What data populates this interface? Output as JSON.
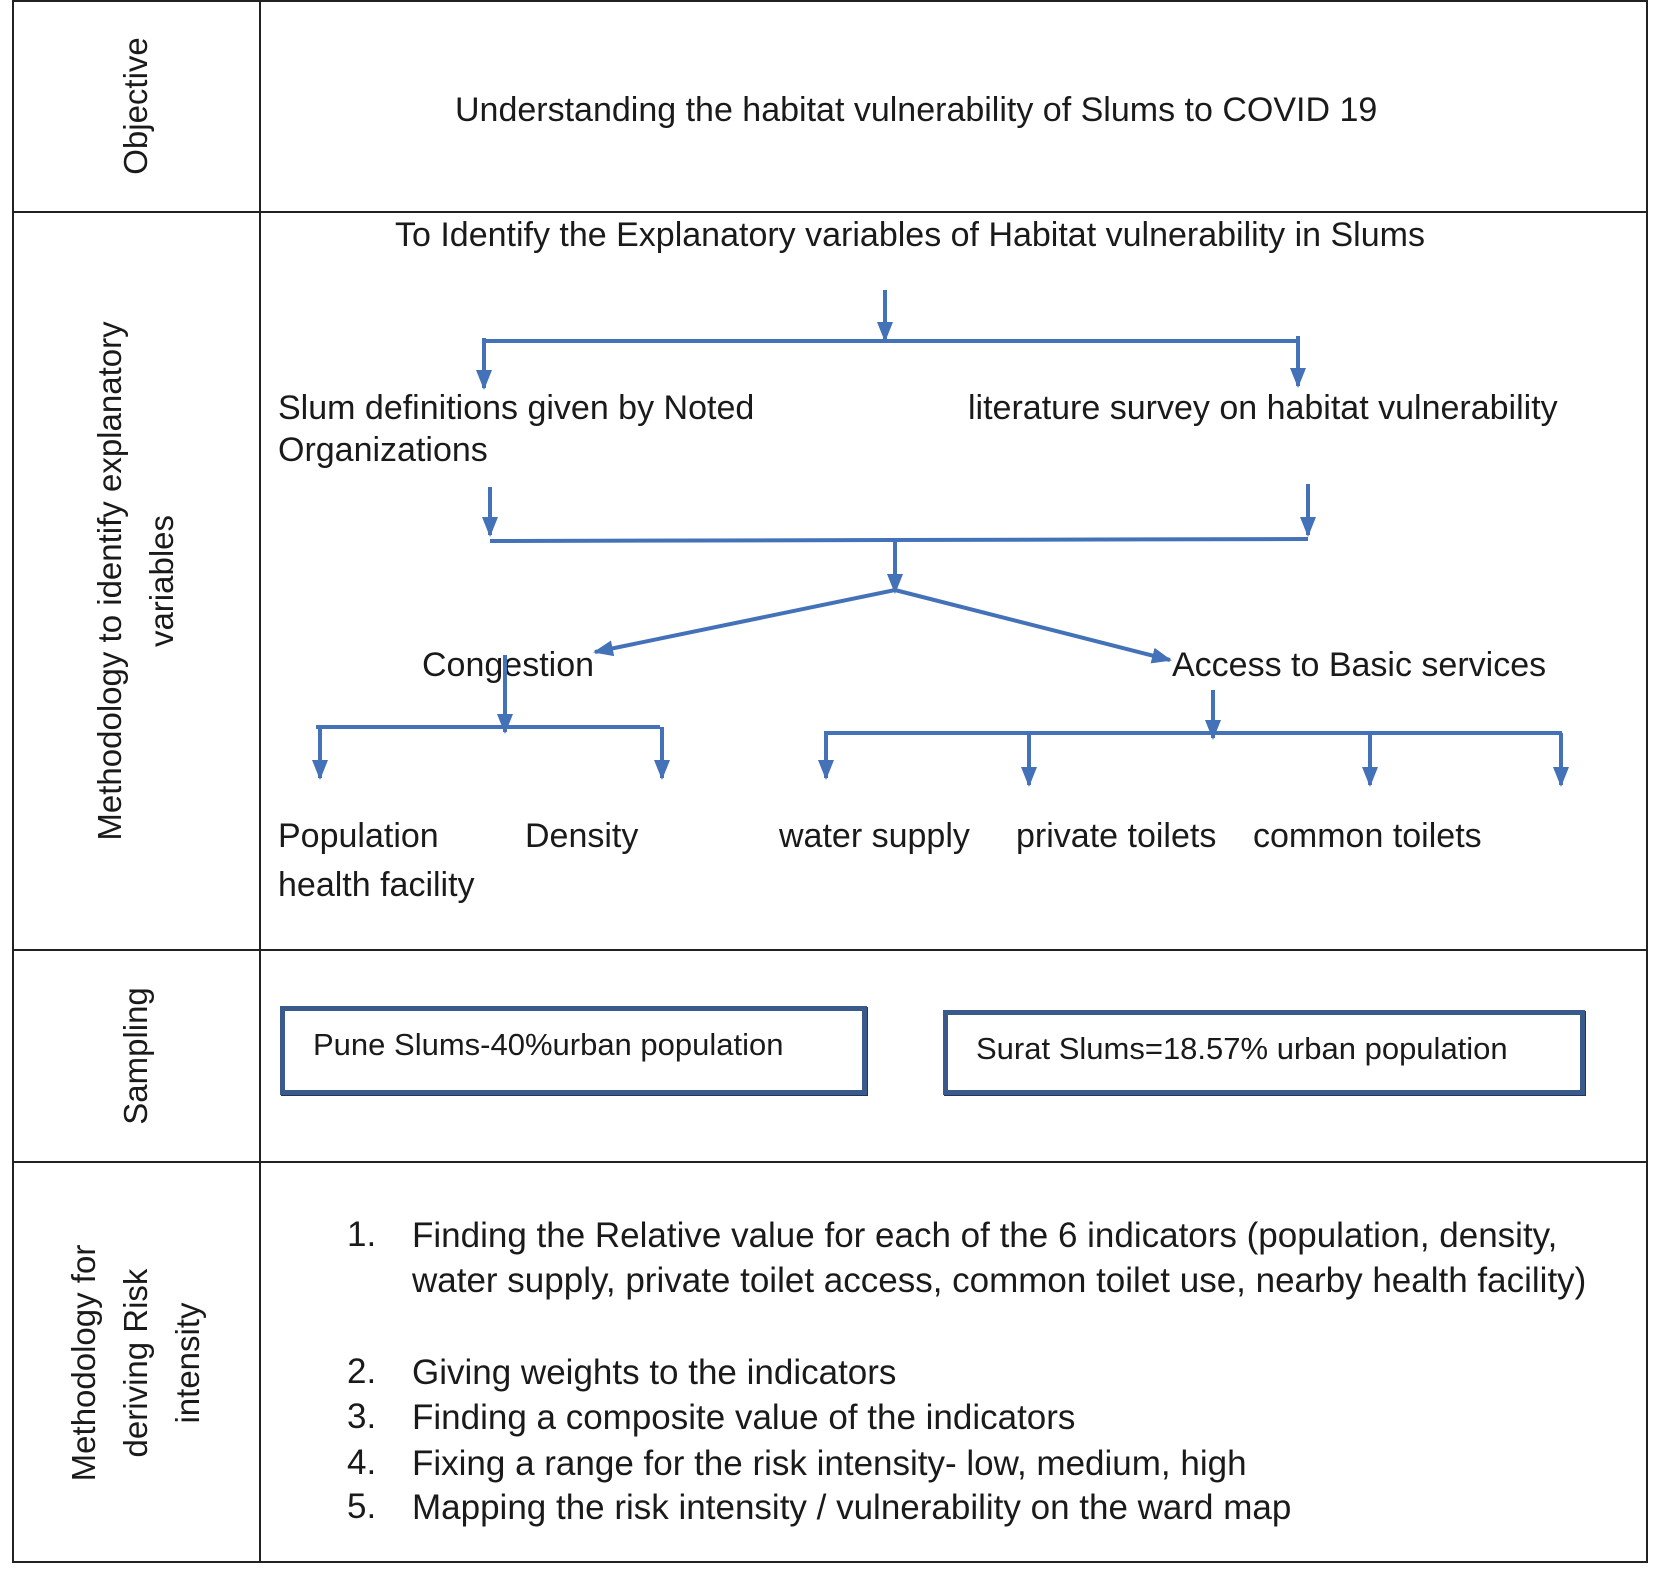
{
  "rows": {
    "objective": {
      "label": "Objective",
      "text": "Understanding the habitat vulnerability of Slums to COVID 19"
    },
    "methodology_variables": {
      "label_line1": "Methodology to identify explanatory",
      "label_line2": "variables",
      "title": "To Identify the Explanatory variables of Habitat vulnerability in Slums",
      "source_left_line1": "Slum definitions given by Noted",
      "source_left_line2": "Organizations",
      "source_right": "literature survey on habitat vulnerability",
      "category_left": "Congestion",
      "category_right": "Access to Basic services",
      "leaf_population": "Population",
      "leaf_density": "Density",
      "leaf_health": "health facility",
      "leaf_water": "water supply",
      "leaf_private": "private toilets",
      "leaf_common": "common toilets"
    },
    "sampling": {
      "label": "Sampling",
      "box_left": "Pune Slums-40%urban population",
      "box_right": "Surat Slums=18.57% urban population"
    },
    "risk": {
      "label_line1": "Methodology for",
      "label_line2": "deriving Risk",
      "label_line3": "intensity",
      "steps": [
        {
          "num": "1.",
          "text": "Finding the Relative value for each of the 6 indicators (population, density, water supply, private toilet access, common toilet use, nearby health facility)"
        },
        {
          "num": "2.",
          "text": "Giving weights to the indicators"
        },
        {
          "num": "3.",
          "text": "Finding a composite value of the indicators"
        },
        {
          "num": "4.",
          "text": "Fixing a range for the risk intensity- low, medium, high"
        },
        {
          "num": "5.",
          "text": "Mapping the risk intensity / vulnerability on the ward map"
        }
      ]
    }
  },
  "colors": {
    "arrow": "#4472b8",
    "box_border": "#3a5a8c",
    "grid": "#222222"
  }
}
